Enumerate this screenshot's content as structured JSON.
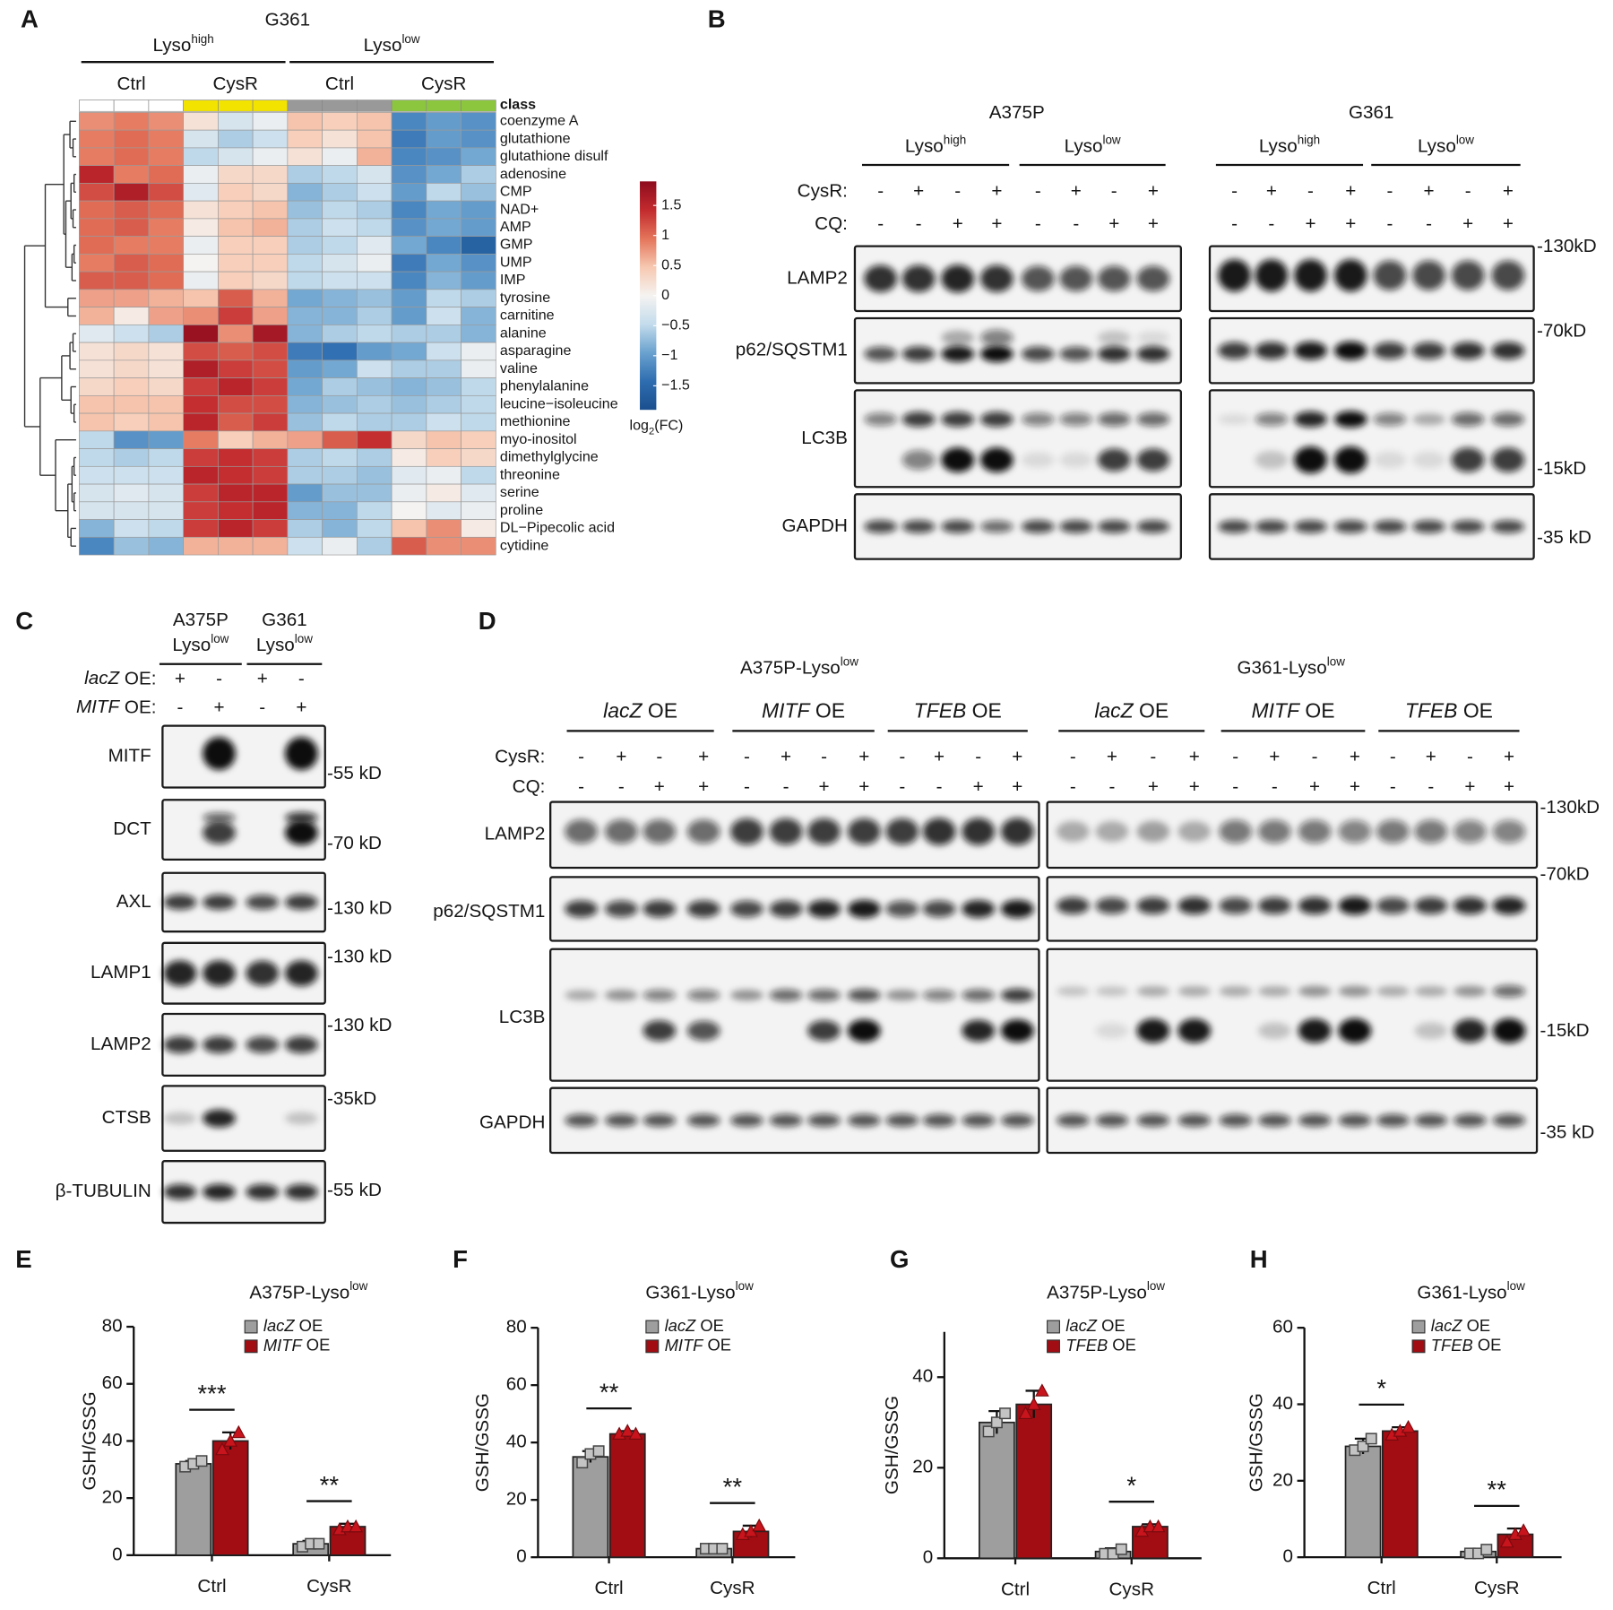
{
  "chart_data": [
    {
      "type": "heatmap",
      "label": "A",
      "title": "G361",
      "groups": [
        {
          "text": "Lyso",
          "superscript": "high",
          "conditions": [
            "Ctrl",
            "CysR"
          ]
        },
        {
          "text": "Lyso",
          "superscript": "low",
          "conditions": [
            "Ctrl",
            "CysR"
          ]
        }
      ],
      "class_label": "class",
      "class_colors": [
        "#ffffff",
        "#f2e300",
        "#999999",
        "#8cc63e"
      ],
      "rows": [
        "coenzyme A",
        "glutathione",
        "glutathione disulf",
        "adenosine",
        "CMP",
        "NAD+",
        "AMP",
        "GMP",
        "UMP",
        "IMP",
        "tyrosine",
        "carnitine",
        "alanine",
        "asparagine",
        "valine",
        "phenylalanine",
        "leucine−isoleucine",
        "methionine",
        "myo-inositol",
        "dimethylglycine",
        "threonine",
        "serine",
        "proline",
        "DL−Pipecolic acid",
        "cytidine"
      ],
      "values": [
        [
          0.8,
          0.9,
          0.8,
          0.2,
          -0.3,
          -0.1,
          0.5,
          0.4,
          0.5,
          -1.2,
          -1.0,
          -1.1
        ],
        [
          0.9,
          1.0,
          0.9,
          -0.3,
          -0.6,
          -0.4,
          0.4,
          0.2,
          0.5,
          -1.3,
          -1.0,
          -1.1
        ],
        [
          0.9,
          1.0,
          0.9,
          -0.5,
          -0.3,
          -0.1,
          0.2,
          -0.1,
          0.6,
          -1.2,
          -1.1,
          -0.9
        ],
        [
          1.5,
          0.9,
          1.0,
          -0.1,
          0.3,
          0.3,
          -0.6,
          -0.5,
          -0.3,
          -1.1,
          -0.9,
          -0.6
        ],
        [
          1.2,
          1.6,
          1.2,
          -0.2,
          0.4,
          0.3,
          -0.8,
          -0.6,
          -0.4,
          -1.0,
          -0.5,
          -0.7
        ],
        [
          1.0,
          1.1,
          1.0,
          0.2,
          0.4,
          0.5,
          -0.7,
          -0.5,
          -0.6,
          -1.2,
          -0.9,
          -1.0
        ],
        [
          1.0,
          1.1,
          0.9,
          0.1,
          0.5,
          0.6,
          -0.6,
          -0.4,
          -0.5,
          -1.1,
          -0.9,
          -1.0
        ],
        [
          1.0,
          0.9,
          0.9,
          -0.1,
          0.4,
          0.4,
          -0.6,
          -0.5,
          -0.2,
          -0.9,
          -1.2,
          -1.6
        ],
        [
          0.9,
          1.1,
          1.0,
          0.0,
          0.4,
          0.4,
          -0.5,
          -0.3,
          -0.1,
          -1.3,
          -0.9,
          -1.1
        ],
        [
          1.1,
          1.1,
          1.0,
          -0.1,
          0.4,
          0.3,
          -0.5,
          -0.4,
          -0.4,
          -1.2,
          -0.8,
          -1.0
        ],
        [
          0.7,
          0.7,
          0.6,
          0.5,
          1.1,
          0.6,
          -0.9,
          -0.8,
          -0.7,
          -1.0,
          -0.5,
          -0.6
        ],
        [
          0.6,
          0.1,
          0.7,
          0.8,
          1.3,
          0.7,
          -0.8,
          -0.8,
          -0.6,
          -1.0,
          -0.4,
          -0.8
        ],
        [
          -0.2,
          -0.4,
          -0.6,
          1.8,
          0.8,
          1.7,
          -0.8,
          -0.6,
          -0.5,
          -0.6,
          -0.6,
          -0.8
        ],
        [
          0.2,
          0.3,
          0.2,
          1.2,
          1.1,
          1.2,
          -1.3,
          -1.4,
          -1.0,
          -0.9,
          -0.4,
          -0.1
        ],
        [
          0.2,
          0.3,
          0.2,
          1.6,
          1.3,
          1.2,
          -1.0,
          -0.9,
          -0.4,
          -0.6,
          -0.6,
          -0.1
        ],
        [
          0.3,
          0.4,
          0.3,
          1.3,
          1.5,
          1.3,
          -0.9,
          -0.6,
          -0.7,
          -0.8,
          -0.7,
          -0.5
        ],
        [
          0.5,
          0.5,
          0.5,
          1.4,
          1.2,
          1.2,
          -0.8,
          -0.7,
          -0.6,
          -0.7,
          -0.6,
          -0.5
        ],
        [
          0.5,
          0.4,
          0.5,
          1.5,
          1.1,
          1.3,
          -0.7,
          -0.5,
          -0.6,
          -0.6,
          -0.4,
          -0.5
        ],
        [
          -0.5,
          -1.1,
          -1.0,
          0.9,
          0.4,
          0.6,
          0.7,
          1.1,
          1.4,
          0.3,
          0.5,
          0.4
        ],
        [
          -0.5,
          -0.6,
          -0.5,
          1.3,
          1.4,
          1.3,
          -0.6,
          -0.5,
          -0.6,
          0.1,
          0.4,
          0.3
        ],
        [
          -0.4,
          -0.4,
          -0.4,
          1.5,
          1.4,
          1.3,
          -0.6,
          -0.6,
          -0.7,
          -0.2,
          -0.1,
          -0.5
        ],
        [
          -0.3,
          -0.2,
          -0.3,
          1.3,
          1.5,
          1.5,
          -1.0,
          -0.7,
          -0.7,
          -0.1,
          0.1,
          -0.2
        ],
        [
          -0.3,
          -0.3,
          -0.3,
          1.3,
          1.4,
          1.5,
          -0.8,
          -0.8,
          -0.5,
          0.0,
          -0.2,
          -0.1
        ],
        [
          -0.8,
          -0.4,
          -0.5,
          1.3,
          1.5,
          1.3,
          -0.6,
          -0.8,
          -0.5,
          0.5,
          0.8,
          0.1
        ],
        [
          -1.2,
          -0.7,
          -0.8,
          0.6,
          0.6,
          0.6,
          -0.4,
          -0.1,
          -0.6,
          1.1,
          0.8,
          0.8
        ]
      ],
      "colorbar": {
        "range": [
          -1.9,
          1.9
        ],
        "colors": [
          "#1b4f8e",
          "#2e6db0",
          "#6aa2cf",
          "#c4dcec",
          "#f5f3f1",
          "#f7c8b1",
          "#e4745a",
          "#c22a2e",
          "#8e0c1e"
        ],
        "ticks": [
          1.5,
          1,
          0.5,
          0,
          {
            "value": -0.5,
            "label": "−0.5"
          },
          {
            "value": -1,
            "label": "−1"
          },
          {
            "value": -1.5,
            "label": "−1.5"
          }
        ],
        "label": {
          "text": "log",
          "subscript": "2",
          "suffix": "(FC)"
        }
      }
    },
    {
      "type": "bar",
      "label": "E",
      "title": "A375P-Lyso",
      "title_superscript": "low",
      "y_label": "GSH/GSSG",
      "categories": [
        "Ctrl",
        "CysR"
      ],
      "ylim": [
        0,
        80
      ],
      "yticks": [
        0,
        20,
        40,
        60,
        80
      ],
      "series": [
        {
          "name": "lacZ OE",
          "color": "#9e9e9e",
          "marker": "square",
          "values": [
            32,
            4
          ],
          "errors": [
            1,
            1
          ],
          "points": [
            [
              31,
              32,
              33
            ],
            [
              3,
              4,
              4
            ]
          ]
        },
        {
          "name": "MITF OE",
          "color": "#a10d13",
          "marker": "triangle",
          "values": [
            40,
            10
          ],
          "errors": [
            3,
            1
          ],
          "points": [
            [
              37,
              40,
              43
            ],
            [
              9,
              10,
              10
            ]
          ]
        }
      ],
      "significance": [
        "***",
        "**"
      ]
    },
    {
      "type": "bar",
      "label": "F",
      "title": "G361-Lyso",
      "title_superscript": "low",
      "y_label": "GSH/GSSG",
      "categories": [
        "Ctrl",
        "CysR"
      ],
      "ylim": [
        0,
        80
      ],
      "yticks": [
        0,
        20,
        40,
        60,
        80
      ],
      "series": [
        {
          "name": "lacZ OE",
          "color": "#9e9e9e",
          "marker": "square",
          "values": [
            35,
            3
          ],
          "errors": [
            2,
            0.5
          ],
          "points": [
            [
              33,
              36,
              37
            ],
            [
              3,
              3,
              3
            ]
          ]
        },
        {
          "name": "MITF OE",
          "color": "#a10d13",
          "marker": "triangle",
          "values": [
            43,
            9
          ],
          "errors": [
            1,
            2
          ],
          "points": [
            [
              43,
              44,
              43
            ],
            [
              8,
              9,
              11
            ]
          ]
        }
      ],
      "significance": [
        "**",
        "**"
      ]
    },
    {
      "type": "bar",
      "label": "G",
      "title": "A375P-Lyso",
      "title_superscript": "low",
      "y_label": "GSH/GSSG",
      "categories": [
        "Ctrl",
        "CysR"
      ],
      "ylim": [
        0,
        50
      ],
      "yticks": [
        0,
        20,
        40
      ],
      "series": [
        {
          "name": "lacZ OE",
          "color": "#9e9e9e",
          "marker": "square",
          "values": [
            30,
            1.5
          ],
          "errors": [
            2.5,
            0.7
          ],
          "points": [
            [
              28,
              30,
              32
            ],
            [
              1,
              1,
              2
            ]
          ]
        },
        {
          "name": "TFEB OE",
          "color": "#a10d13",
          "marker": "triangle",
          "values": [
            34,
            7
          ],
          "errors": [
            3,
            0.5
          ],
          "points": [
            [
              32,
              34,
              37
            ],
            [
              6,
              7,
              7
            ]
          ]
        }
      ],
      "significance": [
        null,
        "*"
      ]
    },
    {
      "type": "bar",
      "label": "H",
      "title": "G361-Lyso",
      "title_superscript": "low",
      "y_label": "GSH/GSSG",
      "categories": [
        "Ctrl",
        "CysR"
      ],
      "ylim": [
        0,
        60
      ],
      "yticks": [
        0,
        20,
        40,
        60
      ],
      "series": [
        {
          "name": "lacZ OE",
          "color": "#9e9e9e",
          "marker": "square",
          "values": [
            29,
            1.5
          ],
          "errors": [
            2,
            0.6
          ],
          "points": [
            [
              28,
              29,
              31
            ],
            [
              1,
              1,
              2
            ]
          ]
        },
        {
          "name": "TFEB OE",
          "color": "#a10d13",
          "marker": "triangle",
          "values": [
            33,
            6
          ],
          "errors": [
            1,
            1.5
          ],
          "points": [
            [
              32,
              33,
              34
            ],
            [
              4,
              6,
              7
            ]
          ]
        }
      ],
      "significance": [
        "*",
        "**"
      ]
    }
  ],
  "blot_b": {
    "label": "B",
    "cell_lines": [
      {
        "name": "A375P",
        "groups": [
          {
            "text": "Lyso",
            "superscript": "high"
          },
          {
            "text": "Lyso",
            "superscript": "low"
          }
        ]
      },
      {
        "name": "G361",
        "groups": [
          {
            "text": "Lyso",
            "superscript": "high"
          },
          {
            "text": "Lyso",
            "superscript": "low"
          }
        ]
      }
    ],
    "treatments": [
      {
        "label": "CysR:",
        "signs": [
          "-",
          "+",
          "-",
          "+",
          "-",
          "+",
          "-",
          "+",
          "-",
          "+",
          "-",
          "+",
          "-",
          "+",
          "-",
          "+"
        ]
      },
      {
        "label": "CQ:",
        "signs": [
          "-",
          "-",
          "+",
          "+",
          "-",
          "-",
          "+",
          "+",
          "-",
          "-",
          "+",
          "+",
          "-",
          "-",
          "+",
          "+"
        ]
      }
    ],
    "rows": [
      "LAMP2",
      "p62/SQSTM1",
      "LC3B",
      "GAPDH"
    ],
    "markers": [
      "-130kD",
      "-70kD",
      "-15kD",
      "-35 kD"
    ]
  },
  "blot_c": {
    "label": "C",
    "cell_lines": [
      {
        "name": "A375P",
        "text": "Lyso",
        "superscript": "low"
      },
      {
        "name": "G361",
        "text": "Lyso",
        "superscript": "low"
      }
    ],
    "treatments": [
      {
        "label": "lacZ OE:",
        "signs": [
          "+",
          "-",
          "+",
          "-"
        ]
      },
      {
        "label": "MITF OE:",
        "signs": [
          "-",
          "+",
          "-",
          "+"
        ]
      }
    ],
    "rows": [
      "MITF",
      "DCT",
      "AXL",
      "LAMP1",
      "LAMP2",
      "CTSB",
      "β-TUBULIN"
    ],
    "markers": [
      "-55 kD",
      "-70 kD",
      "-130 kD",
      "-130 kD",
      "-130 kD",
      "-35kD",
      "-55 kD"
    ]
  },
  "blot_d": {
    "label": "D",
    "cell_lines": [
      {
        "name": "A375P-Lyso",
        "superscript": "low",
        "groups": [
          "lacZ OE",
          "MITF OE",
          "TFEB OE"
        ]
      },
      {
        "name": "G361-Lyso",
        "superscript": "low",
        "groups": [
          "lacZ OE",
          "MITF OE",
          "TFEB OE"
        ]
      }
    ],
    "treatments": [
      {
        "label": "CysR:",
        "signs": [
          "-",
          "+",
          "-",
          "+",
          "-",
          "+",
          "-",
          "+",
          "-",
          "+",
          "-",
          "+",
          "-",
          "+",
          "-",
          "+",
          "-",
          "+",
          "-",
          "+",
          "-",
          "+",
          "-",
          "+"
        ]
      },
      {
        "label": "CQ:",
        "signs": [
          "-",
          "-",
          "+",
          "+",
          "-",
          "-",
          "+",
          "+",
          "-",
          "-",
          "+",
          "+",
          "-",
          "-",
          "+",
          "+",
          "-",
          "-",
          "+",
          "+",
          "-",
          "-",
          "+",
          "+"
        ]
      }
    ],
    "rows": [
      "LAMP2",
      "p62/SQSTM1",
      "LC3B",
      "GAPDH"
    ],
    "markers": [
      "-130kD",
      "-70kD",
      "-15kD",
      "-35 kD"
    ]
  }
}
